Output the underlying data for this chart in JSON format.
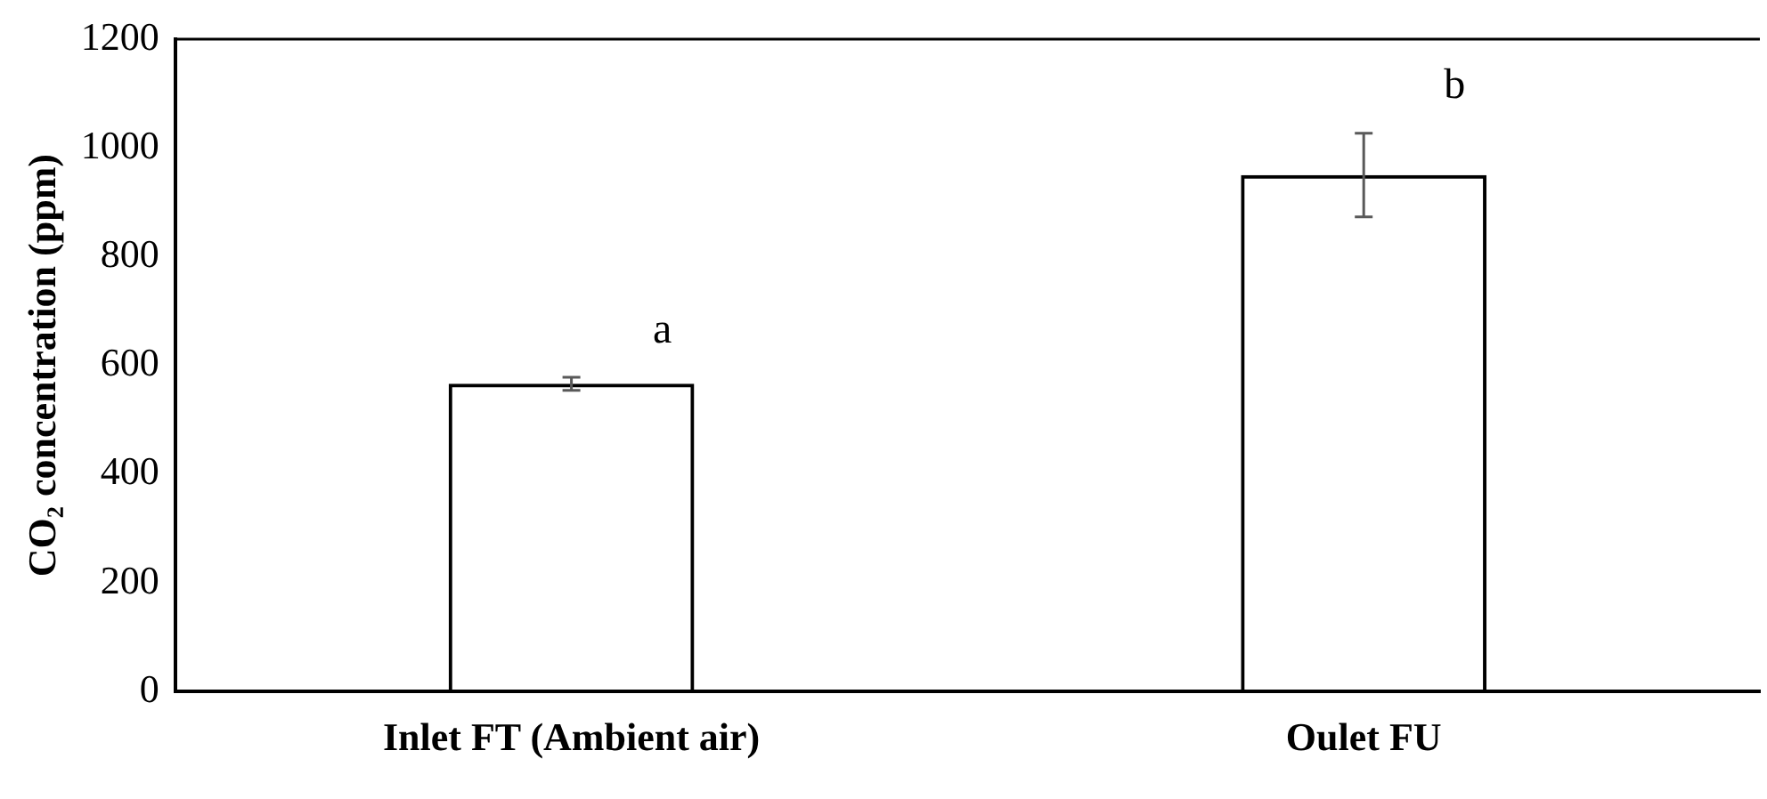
{
  "chart_data": {
    "type": "bar",
    "ylabel": "CO₂ concentration (ppm)",
    "categories": [
      "Inlet FT (Ambient air)",
      "Oulet FU"
    ],
    "values": [
      566,
      950
    ],
    "errors": [
      12,
      77
    ],
    "color": "#000000",
    "ylim": [
      0,
      1200
    ],
    "yticks": [
      0,
      200,
      400,
      600,
      800,
      1000,
      1200
    ],
    "grid": false,
    "legend": false,
    "annotations": [
      "a",
      "b"
    ]
  }
}
